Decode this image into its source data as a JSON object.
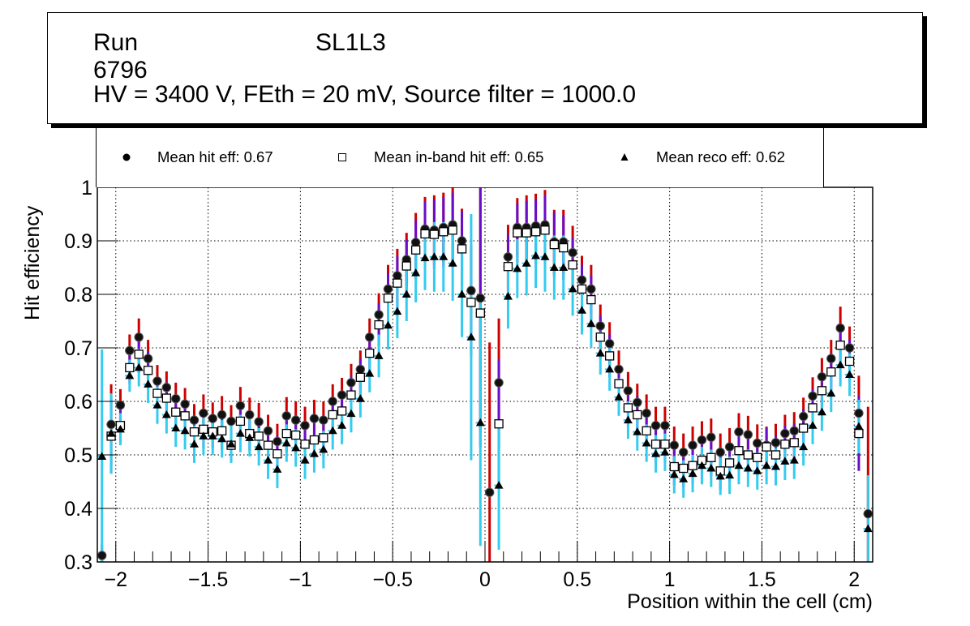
{
  "title": {
    "run": "Run 6796",
    "layer": "SL1L3",
    "conditions": "HV = 3400 V, FEth = 20 mV, Source filter = 1000.0"
  },
  "legend": [
    {
      "marker": "filled-circle",
      "label": "Mean hit  eff: 0.67"
    },
    {
      "marker": "open-square",
      "label": "Mean in-band hit eff: 0.65"
    },
    {
      "marker": "filled-triangle",
      "label": "Mean reco eff: 0.62"
    }
  ],
  "colors": {
    "hit_err_upper": "#cc0000",
    "inband_err": "#6a0dc8",
    "reco_err": "#33ccf0",
    "marker": "#000000",
    "grid": "#000000"
  },
  "chart_data": {
    "type": "scatter",
    "title": "Run 6796 SL1L3 — HV = 3400 V, FEth = 20 mV, Source filter = 1000.0",
    "xlabel": "Position within the cell (cm)",
    "ylabel": "Hit efficiency",
    "xlim": [
      -2.1,
      2.1
    ],
    "ylim": [
      0.3,
      1.0
    ],
    "xticks": [
      -2,
      -1.5,
      -1,
      -0.5,
      0,
      0.5,
      1,
      1.5,
      2
    ],
    "xtick_labels": [
      "−2",
      "−1.5",
      "−1",
      "−0.5",
      "0",
      "0.5",
      "1",
      "1.5",
      "2"
    ],
    "yticks": [
      0.3,
      0.4,
      0.5,
      0.6,
      0.7,
      0.8,
      0.9,
      1
    ],
    "ytick_labels": [
      "0.3",
      "0.4",
      "0.5",
      "0.6",
      "0.7",
      "0.8",
      "0.9",
      "1"
    ],
    "grid": true,
    "legend_position": "top",
    "x": [
      -2.075,
      -2.025,
      -1.975,
      -1.925,
      -1.875,
      -1.825,
      -1.775,
      -1.725,
      -1.675,
      -1.625,
      -1.575,
      -1.525,
      -1.475,
      -1.425,
      -1.375,
      -1.325,
      -1.275,
      -1.225,
      -1.175,
      -1.125,
      -1.075,
      -1.025,
      -0.975,
      -0.925,
      -0.875,
      -0.825,
      -0.775,
      -0.725,
      -0.675,
      -0.625,
      -0.575,
      -0.525,
      -0.475,
      -0.425,
      -0.375,
      -0.325,
      -0.275,
      -0.225,
      -0.175,
      -0.125,
      -0.075,
      -0.025,
      0.025,
      0.075,
      0.125,
      0.175,
      0.225,
      0.275,
      0.325,
      0.375,
      0.425,
      0.475,
      0.525,
      0.575,
      0.625,
      0.675,
      0.725,
      0.775,
      0.825,
      0.875,
      0.925,
      0.975,
      1.025,
      1.075,
      1.125,
      1.175,
      1.225,
      1.275,
      1.325,
      1.375,
      1.425,
      1.475,
      1.525,
      1.575,
      1.625,
      1.675,
      1.725,
      1.775,
      1.825,
      1.875,
      1.925,
      1.975,
      2.025,
      2.075
    ],
    "series": [
      {
        "name": "Mean hit  eff: 0.67",
        "marker": "filled-circle",
        "values": [
          0.312,
          0.557,
          0.593,
          0.695,
          0.72,
          0.68,
          0.638,
          0.626,
          0.605,
          0.595,
          0.565,
          0.578,
          0.568,
          0.575,
          0.563,
          0.592,
          0.575,
          0.562,
          0.545,
          0.525,
          0.573,
          0.565,
          0.555,
          0.568,
          0.565,
          0.6,
          0.612,
          0.635,
          0.66,
          0.72,
          0.762,
          0.81,
          0.835,
          0.865,
          0.897,
          0.922,
          0.92,
          0.925,
          0.93,
          0.9,
          0.807,
          0.793,
          0.43,
          0.635,
          0.87,
          0.925,
          0.925,
          0.928,
          0.93,
          0.898,
          0.898,
          0.878,
          0.827,
          0.81,
          0.741,
          0.708,
          0.66,
          0.62,
          0.598,
          0.578,
          0.555,
          0.555,
          0.518,
          0.505,
          0.518,
          0.528,
          0.533,
          0.505,
          0.515,
          0.543,
          0.538,
          0.522,
          0.518,
          0.523,
          0.54,
          0.545,
          0.572,
          0.61,
          0.646,
          0.68,
          0.737,
          0.7,
          0.578,
          0.39
        ],
        "err": [
          0.02,
          0.075,
          0.03,
          0.03,
          0.035,
          0.035,
          0.03,
          0.03,
          0.03,
          0.03,
          0.03,
          0.035,
          0.03,
          0.035,
          0.03,
          0.035,
          0.032,
          0.035,
          0.03,
          0.033,
          0.035,
          0.035,
          0.035,
          0.035,
          0.035,
          0.032,
          0.032,
          0.035,
          0.035,
          0.035,
          0.04,
          0.045,
          0.05,
          0.05,
          0.055,
          0.06,
          0.065,
          0.065,
          0.07,
          0.06,
          0.085,
          0.25,
          0.28,
          0.12,
          0.06,
          0.055,
          0.06,
          0.06,
          0.065,
          0.06,
          0.06,
          0.05,
          0.045,
          0.045,
          0.04,
          0.04,
          0.035,
          0.035,
          0.035,
          0.035,
          0.035,
          0.035,
          0.035,
          0.035,
          0.035,
          0.035,
          0.035,
          0.035,
          0.035,
          0.035,
          0.035,
          0.035,
          0.035,
          0.035,
          0.035,
          0.035,
          0.035,
          0.035,
          0.035,
          0.035,
          0.04,
          0.04,
          0.07,
          0.2
        ]
      },
      {
        "name": "Mean in-band hit eff: 0.65",
        "marker": "open-square",
        "values": [
          null,
          0.535,
          0.555,
          0.663,
          0.688,
          0.658,
          0.615,
          0.606,
          0.58,
          0.573,
          0.543,
          0.548,
          0.543,
          0.545,
          0.518,
          0.563,
          0.54,
          0.535,
          0.518,
          0.502,
          0.54,
          0.537,
          0.52,
          0.528,
          0.532,
          0.575,
          0.582,
          0.612,
          0.645,
          0.69,
          0.743,
          0.793,
          0.821,
          0.853,
          0.883,
          0.913,
          0.912,
          0.917,
          0.92,
          0.885,
          0.785,
          0.765,
          null,
          0.558,
          0.852,
          0.915,
          0.915,
          0.917,
          0.92,
          0.893,
          0.887,
          0.855,
          0.81,
          0.79,
          0.72,
          0.685,
          0.633,
          0.588,
          0.575,
          0.545,
          0.52,
          0.52,
          0.478,
          0.475,
          0.48,
          0.49,
          0.495,
          0.47,
          0.485,
          0.508,
          0.5,
          0.495,
          0.515,
          0.5,
          0.52,
          0.523,
          0.55,
          0.588,
          0.62,
          0.655,
          0.705,
          0.675,
          0.54,
          null
        ],
        "err": [
          null,
          0.07,
          0.03,
          0.03,
          0.035,
          0.035,
          0.03,
          0.03,
          0.03,
          0.03,
          0.03,
          0.035,
          0.03,
          0.035,
          0.03,
          0.035,
          0.032,
          0.035,
          0.03,
          0.033,
          0.035,
          0.035,
          0.035,
          0.035,
          0.035,
          0.032,
          0.032,
          0.035,
          0.035,
          0.035,
          0.04,
          0.045,
          0.05,
          0.05,
          0.055,
          0.06,
          0.065,
          0.065,
          0.07,
          0.07,
          0.1,
          0.25,
          null,
          0.12,
          0.06,
          0.055,
          0.06,
          0.06,
          0.065,
          0.06,
          0.06,
          0.05,
          0.045,
          0.045,
          0.04,
          0.04,
          0.035,
          0.035,
          0.035,
          0.035,
          0.035,
          0.035,
          0.035,
          0.035,
          0.035,
          0.035,
          0.035,
          0.035,
          0.035,
          0.035,
          0.035,
          0.035,
          0.035,
          0.035,
          0.035,
          0.035,
          0.035,
          0.035,
          0.035,
          0.035,
          0.04,
          0.04,
          0.07,
          null
        ]
      },
      {
        "name": "Mean reco eff: 0.62",
        "marker": "filled-triangle",
        "values": [
          0.497,
          0.54,
          0.548,
          0.648,
          0.663,
          0.632,
          0.593,
          0.575,
          0.55,
          0.545,
          0.52,
          0.535,
          0.535,
          0.53,
          0.52,
          0.54,
          0.532,
          0.515,
          0.49,
          0.473,
          0.522,
          0.513,
          0.49,
          0.502,
          0.51,
          0.545,
          0.555,
          0.577,
          0.605,
          0.652,
          0.685,
          0.742,
          0.768,
          0.8,
          0.84,
          0.868,
          0.87,
          0.87,
          0.858,
          0.8,
          0.72,
          0.56,
          null,
          0.443,
          0.796,
          0.848,
          0.858,
          0.872,
          0.87,
          0.85,
          0.85,
          0.81,
          0.77,
          0.745,
          0.69,
          0.66,
          0.608,
          0.565,
          0.543,
          0.522,
          0.502,
          0.505,
          0.463,
          0.455,
          0.465,
          0.48,
          0.475,
          0.46,
          0.462,
          0.48,
          0.475,
          0.47,
          0.48,
          0.478,
          0.488,
          0.49,
          0.515,
          0.555,
          0.58,
          0.615,
          0.668,
          0.65,
          0.553,
          0.362
        ],
        "err": [
          0.2,
          0.075,
          0.03,
          0.03,
          0.035,
          0.035,
          0.035,
          0.035,
          0.035,
          0.035,
          0.035,
          0.035,
          0.035,
          0.035,
          0.035,
          0.035,
          0.035,
          0.035,
          0.035,
          0.035,
          0.035,
          0.035,
          0.035,
          0.035,
          0.035,
          0.035,
          0.035,
          0.035,
          0.035,
          0.035,
          0.04,
          0.045,
          0.05,
          0.05,
          0.055,
          0.06,
          0.065,
          0.065,
          0.07,
          0.08,
          0.23,
          0.23,
          null,
          0.12,
          0.06,
          0.055,
          0.06,
          0.06,
          0.065,
          0.06,
          0.06,
          0.05,
          0.045,
          0.045,
          0.04,
          0.04,
          0.035,
          0.035,
          0.035,
          0.035,
          0.035,
          0.035,
          0.035,
          0.035,
          0.035,
          0.035,
          0.035,
          0.035,
          0.035,
          0.035,
          0.035,
          0.035,
          0.035,
          0.035,
          0.035,
          0.035,
          0.035,
          0.035,
          0.035,
          0.035,
          0.04,
          0.04,
          0.05,
          0.1
        ]
      }
    ]
  }
}
